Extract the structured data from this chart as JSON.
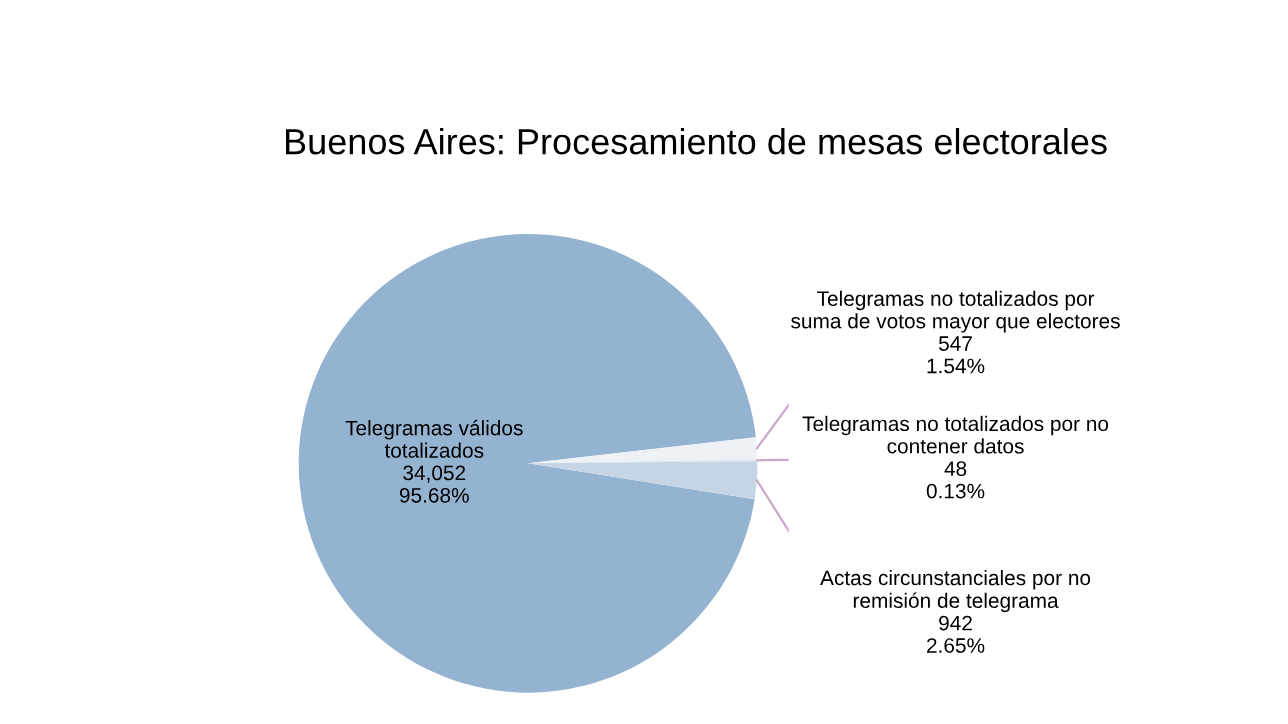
{
  "chart_data": {
    "type": "pie",
    "title": "Buenos Aires: Procesamiento de mesas electorales",
    "categories": [
      "Telegramas válidos totalizados",
      "Telegramas no totalizados por suma de votos mayor que electores",
      "Telegramas no totalizados por no contener datos",
      "Actas circunstanciales por no remisión de telegrama"
    ],
    "values": [
      34052,
      547,
      48,
      942
    ],
    "colors": [
      "#94b3d0",
      "#eef2f7",
      "#dfe7f0",
      "#c5d5e6"
    ],
    "value_labels": [
      "34,052\n95.68%",
      "547\n1.54%",
      "48\n0.13%",
      "942\n2.65%"
    ],
    "legend": false
  }
}
